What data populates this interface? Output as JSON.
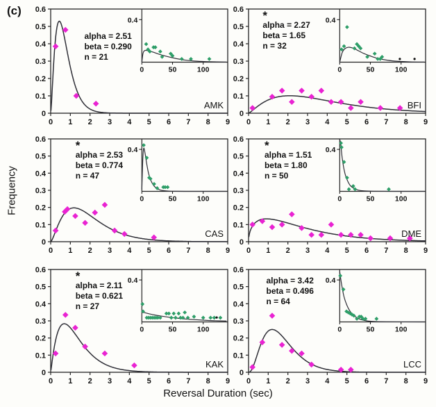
{
  "figure": {
    "label": "(c)",
    "x_title": "Reversal Duration (sec)",
    "y_title": "Frequency"
  },
  "chart_data": {
    "type": "scatter",
    "subtype": "multi-panel gamma-fit frequency distributions with insets",
    "title": "",
    "xlabel": "Reversal Duration (sec)",
    "ylabel": "Frequency",
    "xlim": [
      0,
      9
    ],
    "ylim": [
      0,
      0.6
    ],
    "x_tick_labels": [
      "0",
      "1",
      "2",
      "3",
      "4",
      "5",
      "6",
      "7",
      "8",
      "9"
    ],
    "y_tick_labels": [
      "0",
      "0.1",
      "0.2",
      "0.3",
      "0.4",
      "0.5",
      "0.6"
    ],
    "grid": false,
    "legend": "none",
    "curve_scale": 0.5,
    "colors": {
      "main_points": "#e923d2",
      "inset_points": "#2e9e68",
      "extra_points": "#111111",
      "curve": "#2e2e36",
      "axis": "#222222",
      "text": "#111111"
    },
    "inset_axes": {
      "xlim": [
        0,
        140
      ],
      "ylim": [
        0,
        0.5
      ],
      "x_tick_labels": [
        "0",
        "50",
        "100"
      ],
      "x_tick_values": [
        0,
        50,
        100
      ],
      "y_tick_label": "0.4",
      "y_tick_value": 0.4
    },
    "panels": [
      {
        "id": "AMK",
        "marker": "",
        "stats_lines": [
          "alpha = 2.51",
          "beta = 0.290",
          "n = 21"
        ],
        "alpha": 2.51,
        "beta": 0.29,
        "n": 21,
        "stats_pos_pct": [
          19,
          21
        ],
        "points": [
          [
            0.25,
            0.385
          ],
          [
            0.75,
            0.48
          ],
          [
            1.3,
            0.1
          ],
          [
            2.3,
            0.055
          ]
        ],
        "inset": {
          "points": [
            [
              7,
              0.17
            ],
            [
              10,
              0.12
            ],
            [
              13,
              0.1
            ],
            [
              19,
              0.14
            ],
            [
              22,
              0.14
            ],
            [
              30,
              0.1
            ],
            [
              33,
              0.05
            ],
            [
              47,
              0.08
            ],
            [
              50,
              0.06
            ],
            [
              65,
              0.03
            ],
            [
              80,
              0.03
            ],
            [
              110,
              0.03
            ]
          ],
          "extra_points": [],
          "curve": [
            [
              0,
              0.0
            ],
            [
              2,
              0.085
            ],
            [
              5,
              0.11
            ],
            [
              10,
              0.108
            ],
            [
              18,
              0.095
            ],
            [
              28,
              0.075
            ],
            [
              40,
              0.055
            ],
            [
              55,
              0.035
            ],
            [
              70,
              0.02
            ],
            [
              90,
              0.009
            ],
            [
              110,
              0.004
            ],
            [
              138,
              0.001
            ]
          ]
        }
      },
      {
        "id": "BFI",
        "marker": "*",
        "stats_lines": [
          "alpha = 2.27",
          "beta = 1.65",
          "n = 32"
        ],
        "alpha": 2.27,
        "beta": 1.65,
        "n": 32,
        "stats_pos_pct": [
          8,
          2
        ],
        "points": [
          [
            0.2,
            0.03
          ],
          [
            1.2,
            0.095
          ],
          [
            1.7,
            0.13
          ],
          [
            2.2,
            0.065
          ],
          [
            2.7,
            0.13
          ],
          [
            3.2,
            0.095
          ],
          [
            3.7,
            0.13
          ],
          [
            4.2,
            0.065
          ],
          [
            4.7,
            0.065
          ],
          [
            5.2,
            0.03
          ],
          [
            5.7,
            0.065
          ],
          [
            6.7,
            0.03
          ],
          [
            7.7,
            0.03
          ]
        ],
        "inset": {
          "points": [
            [
              3,
              0.12
            ],
            [
              7,
              0.15
            ],
            [
              12,
              0.33
            ],
            [
              24,
              0.13
            ],
            [
              28,
              0.17
            ],
            [
              31,
              0.15
            ],
            [
              34,
              0.13
            ],
            [
              45,
              0.05
            ],
            [
              57,
              0.08
            ],
            [
              62,
              0.03
            ],
            [
              66,
              0.03
            ],
            [
              69,
              0.05
            ]
          ],
          "extra_points": [
            [
              98,
              0.03
            ],
            [
              122,
              0.03
            ]
          ],
          "curve": [
            [
              0,
              0.0
            ],
            [
              4,
              0.09
            ],
            [
              8,
              0.125
            ],
            [
              14,
              0.14
            ],
            [
              20,
              0.135
            ],
            [
              28,
              0.115
            ],
            [
              38,
              0.085
            ],
            [
              50,
              0.058
            ],
            [
              62,
              0.036
            ],
            [
              78,
              0.018
            ],
            [
              95,
              0.008
            ],
            [
              115,
              0.003
            ],
            [
              138,
              0.001
            ]
          ]
        }
      },
      {
        "id": "CAS",
        "marker": "*",
        "stats_lines": [
          "alpha = 2.53",
          "beta = 0.774",
          "n = 47"
        ],
        "alpha": 2.53,
        "beta": 0.774,
        "n": 47,
        "stats_pos_pct": [
          14,
          2
        ],
        "points": [
          [
            0.25,
            0.065
          ],
          [
            0.72,
            0.175
          ],
          [
            0.85,
            0.19
          ],
          [
            1.25,
            0.15
          ],
          [
            1.75,
            0.11
          ],
          [
            2.25,
            0.17
          ],
          [
            2.75,
            0.215
          ],
          [
            3.25,
            0.065
          ],
          [
            3.75,
            0.045
          ],
          [
            5.25,
            0.025
          ]
        ],
        "inset": {
          "points": [
            [
              3,
              0.44
            ],
            [
              8,
              0.32
            ],
            [
              12,
              0.13
            ],
            [
              14,
              0.12
            ],
            [
              20,
              0.07
            ],
            [
              25,
              0.03
            ],
            [
              35,
              0.04
            ],
            [
              38,
              0.04
            ],
            [
              42,
              0.04
            ]
          ],
          "extra_points": [],
          "curve": [
            [
              0,
              0.02
            ],
            [
              1.5,
              0.3
            ],
            [
              3,
              0.41
            ],
            [
              5,
              0.37
            ],
            [
              8,
              0.26
            ],
            [
              11,
              0.17
            ],
            [
              15,
              0.1
            ],
            [
              20,
              0.05
            ],
            [
              26,
              0.022
            ],
            [
              33,
              0.008
            ],
            [
              45,
              0.002
            ],
            [
              70,
              0.0
            ],
            [
              138,
              0.0
            ]
          ]
        }
      },
      {
        "id": "DME",
        "marker": "*",
        "stats_lines": [
          "alpha = 1.51",
          "beta = 1.80",
          "n = 50"
        ],
        "alpha": 1.51,
        "beta": 1.8,
        "n": 50,
        "stats_pos_pct": [
          9,
          2
        ],
        "points": [
          [
            0.2,
            0.1
          ],
          [
            0.7,
            0.12
          ],
          [
            1.2,
            0.085
          ],
          [
            1.7,
            0.1
          ],
          [
            2.2,
            0.16
          ],
          [
            2.7,
            0.08
          ],
          [
            3.2,
            0.04
          ],
          [
            3.7,
            0.04
          ],
          [
            4.2,
            0.1
          ],
          [
            4.7,
            0.04
          ],
          [
            5.2,
            0.04
          ],
          [
            5.7,
            0.04
          ],
          [
            6.2,
            0.02
          ],
          [
            7.2,
            0.02
          ],
          [
            8.2,
            0.02
          ]
        ],
        "inset": {
          "points": [
            [
              2,
              0.46
            ],
            [
              3,
              0.42
            ],
            [
              7,
              0.28
            ],
            [
              12,
              0.13
            ],
            [
              15,
              0.02
            ],
            [
              22,
              0.05
            ],
            [
              25,
              0.02
            ],
            [
              80,
              0.02
            ]
          ],
          "extra_points": [],
          "curve": [
            [
              0,
              0.55
            ],
            [
              2,
              0.43
            ],
            [
              4,
              0.32
            ],
            [
              7,
              0.21
            ],
            [
              10,
              0.14
            ],
            [
              14,
              0.085
            ],
            [
              18,
              0.05
            ],
            [
              24,
              0.025
            ],
            [
              30,
              0.012
            ],
            [
              40,
              0.004
            ],
            [
              55,
              0.001
            ],
            [
              90,
              0.0
            ],
            [
              138,
              0.0
            ]
          ]
        }
      },
      {
        "id": "KAK",
        "marker": "*",
        "stats_lines": [
          "alpha = 2.11",
          "beta = 0.621",
          "n = 27"
        ],
        "alpha": 2.11,
        "beta": 0.621,
        "n": 27,
        "stats_pos_pct": [
          14,
          2
        ],
        "points": [
          [
            0.25,
            0.11
          ],
          [
            0.75,
            0.335
          ],
          [
            1.25,
            0.26
          ],
          [
            1.75,
            0.15
          ],
          [
            2.75,
            0.11
          ],
          [
            4.25,
            0.04
          ]
        ],
        "inset": {
          "points": [
            [
              1,
              0.17
            ],
            [
              2,
              0.1
            ],
            [
              8,
              0.04
            ],
            [
              11,
              0.04
            ],
            [
              14,
              0.04
            ],
            [
              17,
              0.04
            ],
            [
              20,
              0.04
            ],
            [
              23,
              0.04
            ],
            [
              26,
              0.04
            ],
            [
              30,
              0.04
            ],
            [
              40,
              0.08
            ],
            [
              44,
              0.08
            ],
            [
              48,
              0.04
            ],
            [
              52,
              0.08
            ],
            [
              55,
              0.04
            ],
            [
              60,
              0.08
            ],
            [
              63,
              0.04
            ],
            [
              67,
              0.04
            ],
            [
              70,
              0.09
            ],
            [
              75,
              0.04
            ],
            [
              85,
              0.05
            ],
            [
              100,
              0.04
            ],
            [
              112,
              0.04
            ],
            [
              118,
              0.04
            ],
            [
              128,
              0.04
            ]
          ],
          "extra_points": [
            [
              122,
              0.042
            ]
          ],
          "curve": [
            [
              0,
              0.095
            ],
            [
              10,
              0.08
            ],
            [
              20,
              0.067
            ],
            [
              32,
              0.055
            ],
            [
              45,
              0.044
            ],
            [
              60,
              0.034
            ],
            [
              75,
              0.026
            ],
            [
              90,
              0.02
            ],
            [
              105,
              0.015
            ],
            [
              120,
              0.011
            ],
            [
              138,
              0.008
            ]
          ]
        }
      },
      {
        "id": "LCC",
        "marker": "",
        "stats_lines": [
          "alpha = 3.42",
          "beta = 0.496",
          "n = 64"
        ],
        "alpha": 3.42,
        "beta": 0.496,
        "n": 64,
        "stats_pos_pct": [
          10,
          6
        ],
        "points": [
          [
            0.2,
            0.03
          ],
          [
            0.7,
            0.175
          ],
          [
            1.2,
            0.33
          ],
          [
            1.7,
            0.16
          ],
          [
            2.2,
            0.125
          ],
          [
            2.7,
            0.11
          ],
          [
            3.2,
            0.045
          ],
          [
            4.7,
            0.015
          ],
          [
            5.2,
            0.015
          ]
        ],
        "inset": {
          "points": [
            [
              1,
              0.44
            ],
            [
              6,
              0.31
            ],
            [
              11,
              0.1
            ],
            [
              14,
              0.09
            ],
            [
              17,
              0.08
            ],
            [
              20,
              0.07
            ],
            [
              23,
              0.06
            ],
            [
              28,
              0.03
            ],
            [
              32,
              0.05
            ],
            [
              35,
              0.05
            ],
            [
              38,
              0.03
            ],
            [
              42,
              0.03
            ],
            [
              60,
              0.03
            ]
          ],
          "extra_points": [],
          "curve": [
            [
              0,
              0.48
            ],
            [
              3,
              0.36
            ],
            [
              7,
              0.24
            ],
            [
              12,
              0.155
            ],
            [
              17,
              0.1
            ],
            [
              22,
              0.066
            ],
            [
              28,
              0.04
            ],
            [
              35,
              0.022
            ],
            [
              45,
              0.009
            ],
            [
              55,
              0.004
            ],
            [
              75,
              0.001
            ],
            [
              138,
              0.0
            ]
          ]
        }
      }
    ]
  }
}
